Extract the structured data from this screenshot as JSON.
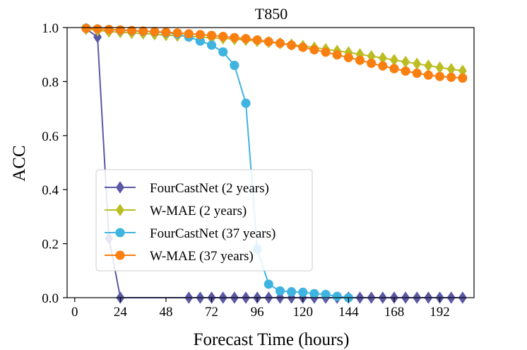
{
  "chart_data": {
    "type": "line",
    "title": "T850",
    "xlabel": "Forecast Time (hours)",
    "ylabel": "ACC",
    "xlim": [
      -4,
      210
    ],
    "ylim": [
      0,
      1
    ],
    "xticks": [
      0,
      24,
      48,
      72,
      96,
      120,
      144,
      168,
      192
    ],
    "yticks": [
      0.0,
      0.2,
      0.4,
      0.6,
      0.8,
      1.0
    ],
    "ytick_labels": [
      "0.0",
      "0.2",
      "0.4",
      "0.6",
      "0.8",
      "1.0"
    ],
    "grid": false,
    "legend_position": "center-left",
    "series": [
      {
        "name": "FourCastNet (2 years)",
        "color": "#5b58a6",
        "marker": "diamond",
        "x": [
          6,
          12,
          18,
          24,
          30,
          36,
          42,
          48,
          54,
          60,
          66,
          72,
          78,
          84,
          90,
          96,
          102,
          108,
          114,
          120,
          126,
          132,
          138,
          144,
          150,
          156,
          162,
          168,
          174,
          180,
          186,
          192,
          198,
          204
        ],
        "y": [
          0.995,
          0.965,
          0.22,
          0.0,
          null,
          null,
          null,
          null,
          null,
          0.0,
          0.0,
          0.0,
          0.0,
          0.0,
          0.0,
          0.0,
          0.0,
          0.0,
          0.0,
          0.0,
          0.0,
          0.0,
          0.0,
          0.0,
          0.0,
          0.0,
          0.0,
          0.0,
          0.0,
          0.0,
          0.0,
          0.0,
          0.0,
          0.0
        ]
      },
      {
        "name": "W-MAE (2 years)",
        "color": "#bcbd22",
        "marker": "diamond",
        "x": [
          6,
          12,
          18,
          24,
          30,
          36,
          42,
          48,
          54,
          60,
          66,
          72,
          78,
          84,
          90,
          96,
          102,
          108,
          114,
          120,
          126,
          132,
          138,
          144,
          150,
          156,
          162,
          168,
          174,
          180,
          186,
          192,
          198,
          204
        ],
        "y": [
          0.995,
          0.99,
          0.985,
          0.983,
          0.98,
          0.978,
          0.975,
          0.972,
          0.97,
          0.968,
          0.965,
          0.962,
          0.96,
          0.957,
          0.954,
          0.95,
          0.946,
          0.942,
          0.937,
          0.932,
          0.926,
          0.92,
          0.914,
          0.908,
          0.901,
          0.894,
          0.887,
          0.88,
          0.873,
          0.866,
          0.859,
          0.852,
          0.846,
          0.84
        ]
      },
      {
        "name": "FourCastNet (37 years)",
        "color": "#3fb4e0",
        "marker": "circle",
        "x": [
          6,
          12,
          18,
          24,
          30,
          36,
          42,
          48,
          54,
          60,
          66,
          72,
          78,
          84,
          90,
          96,
          102,
          108,
          114,
          120,
          126,
          132,
          138,
          144
        ],
        "y": [
          0.998,
          0.995,
          0.993,
          0.99,
          0.988,
          0.986,
          0.984,
          0.981,
          0.976,
          0.965,
          0.95,
          0.935,
          0.91,
          0.86,
          0.72,
          0.18,
          0.05,
          0.025,
          0.022,
          0.02,
          0.015,
          0.012,
          0.005,
          0.0
        ]
      },
      {
        "name": "W-MAE (37 years)",
        "color": "#f97f10",
        "marker": "circle",
        "x": [
          6,
          12,
          18,
          24,
          30,
          36,
          42,
          48,
          54,
          60,
          66,
          72,
          78,
          84,
          90,
          96,
          102,
          108,
          114,
          120,
          126,
          132,
          138,
          144,
          150,
          156,
          162,
          168,
          174,
          180,
          186,
          192,
          198,
          204
        ],
        "y": [
          0.997,
          0.995,
          0.993,
          0.991,
          0.989,
          0.987,
          0.985,
          0.983,
          0.98,
          0.977,
          0.974,
          0.971,
          0.967,
          0.963,
          0.959,
          0.954,
          0.948,
          0.942,
          0.935,
          0.927,
          0.918,
          0.909,
          0.899,
          0.889,
          0.879,
          0.868,
          0.858,
          0.848,
          0.839,
          0.831,
          0.824,
          0.819,
          0.816,
          0.813
        ]
      }
    ]
  }
}
